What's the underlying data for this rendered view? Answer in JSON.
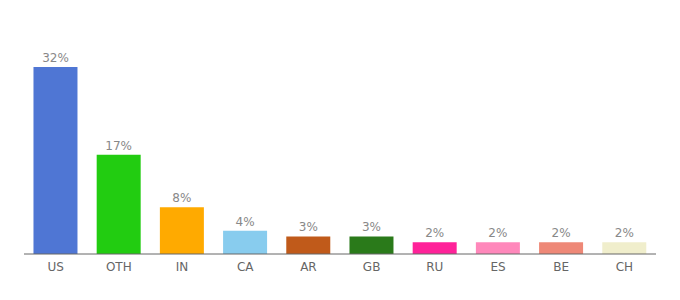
{
  "chart_data": {
    "type": "bar",
    "categories": [
      "US",
      "OTH",
      "IN",
      "CA",
      "AR",
      "GB",
      "RU",
      "ES",
      "BE",
      "CH"
    ],
    "values": [
      32,
      17,
      8,
      4,
      3,
      3,
      2,
      2,
      2,
      2
    ],
    "value_labels": [
      "32%",
      "17%",
      "8%",
      "4%",
      "3%",
      "3%",
      "2%",
      "2%",
      "2%",
      "2%"
    ],
    "colors": [
      "#4f76d4",
      "#22cc11",
      "#ffaa00",
      "#88ccee",
      "#c05a1a",
      "#2a7a1a",
      "#ff2299",
      "#ff88bb",
      "#ee8877",
      "#f0eecc"
    ],
    "ylim": [
      0,
      38
    ],
    "data_labels": true,
    "tick_labels": "x",
    "grid": false
  }
}
